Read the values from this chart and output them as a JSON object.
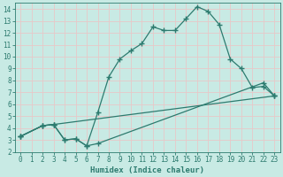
{
  "xlabel": "Humidex (Indice chaleur)",
  "xlim": [
    -0.5,
    23.5
  ],
  "ylim": [
    2,
    14.5
  ],
  "xticks": [
    0,
    1,
    2,
    3,
    4,
    5,
    6,
    7,
    8,
    9,
    10,
    11,
    12,
    13,
    14,
    15,
    16,
    17,
    18,
    19,
    20,
    21,
    22,
    23
  ],
  "yticks": [
    2,
    3,
    4,
    5,
    6,
    7,
    8,
    9,
    10,
    11,
    12,
    13,
    14
  ],
  "line_color": "#2d7b6f",
  "bg_color": "#c8eae4",
  "grid_color": "#e8c8c8",
  "line1_x": [
    0,
    2,
    3,
    4,
    5,
    6,
    7,
    8,
    9,
    10,
    11,
    12,
    13,
    14,
    15,
    16,
    17,
    18,
    19,
    20,
    21,
    22,
    23
  ],
  "line1_y": [
    3.3,
    4.2,
    4.3,
    3.0,
    3.1,
    2.5,
    5.3,
    8.3,
    9.8,
    10.5,
    11.1,
    12.5,
    12.2,
    12.2,
    13.2,
    14.2,
    13.8,
    12.7,
    9.8,
    9.0,
    7.4,
    7.5,
    6.7
  ],
  "line2_x": [
    0,
    2,
    3,
    4,
    5,
    6,
    7,
    22,
    23
  ],
  "line2_y": [
    3.3,
    4.2,
    4.3,
    3.0,
    3.1,
    2.5,
    2.7,
    7.8,
    6.7
  ],
  "line3_x": [
    0,
    2,
    3,
    23
  ],
  "line3_y": [
    3.3,
    4.2,
    4.3,
    6.7
  ],
  "marker": "+",
  "markersize": 4,
  "linewidth": 0.9,
  "tick_fontsize": 5.5,
  "xlabel_fontsize": 6.5
}
